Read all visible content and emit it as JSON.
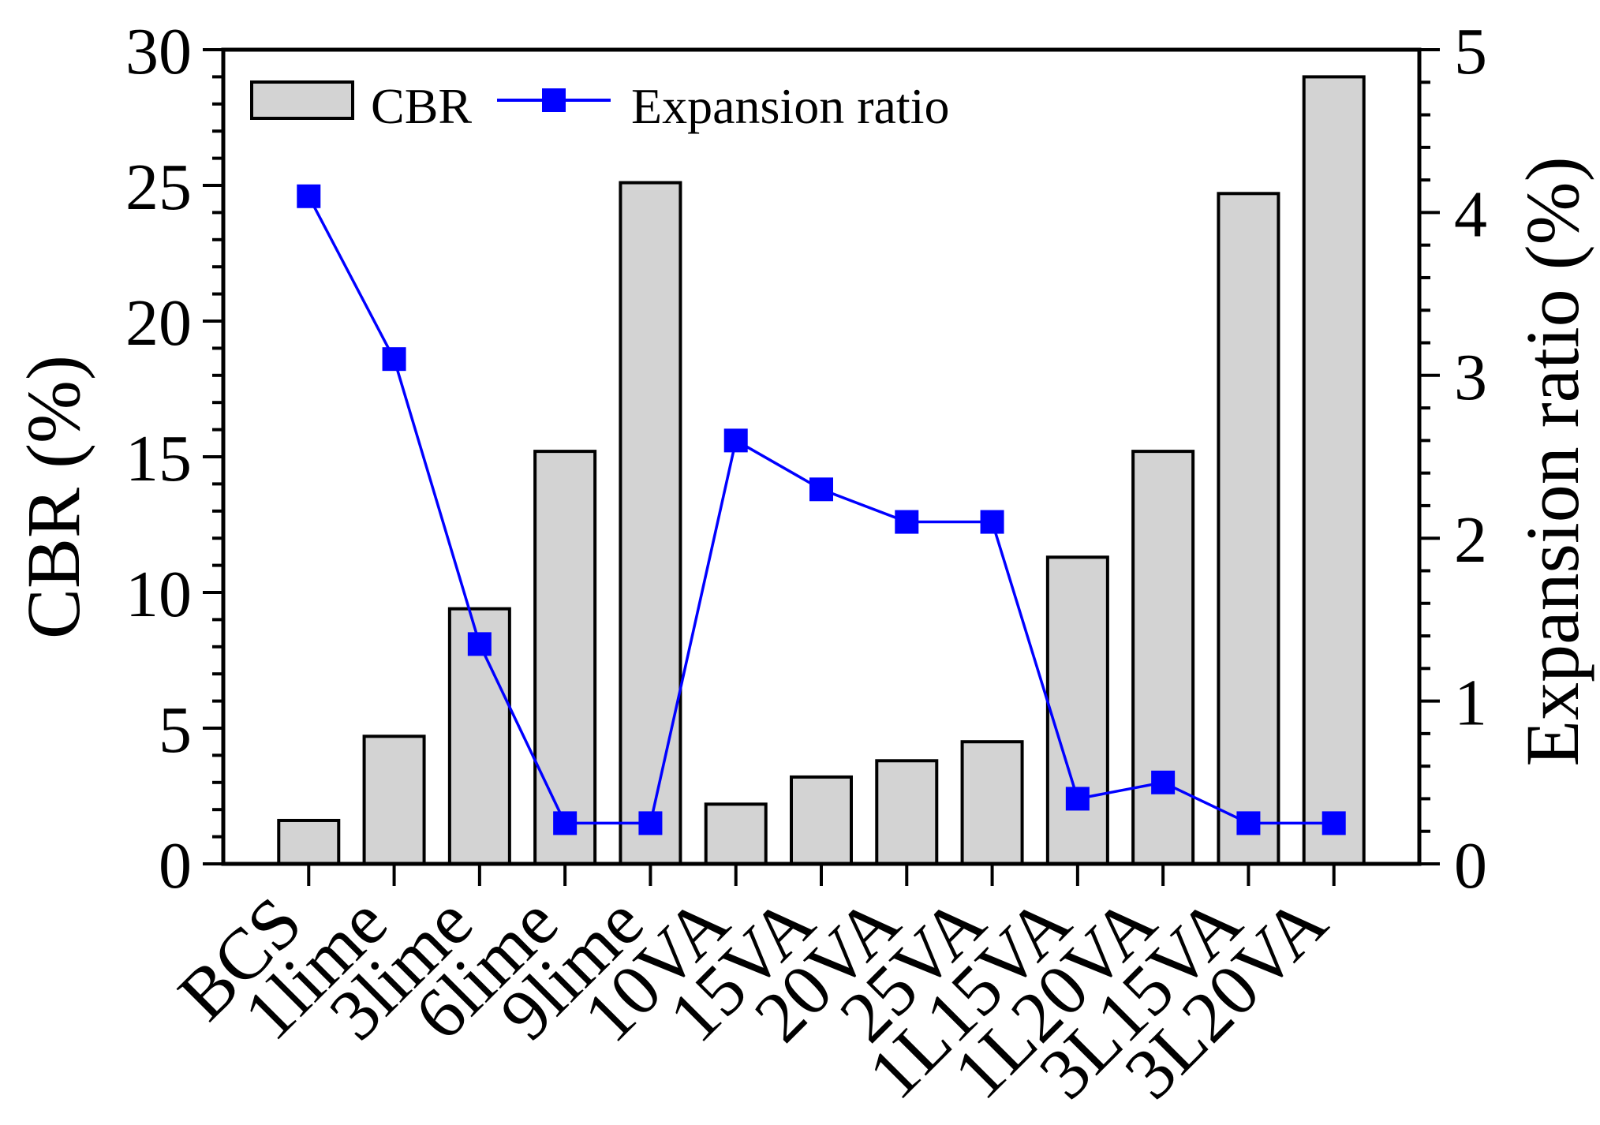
{
  "chart_data": {
    "type": "combo-bar-line",
    "title": "",
    "background": "#ffffff",
    "grid": "off",
    "categories": [
      "BCS",
      "1lime",
      "3lime",
      "6lime",
      "9lime",
      "10VA",
      "15VA",
      "20VA",
      "25VA",
      "1L15VA",
      "1L20VA",
      "3L15VA",
      "3L20VA"
    ],
    "series": [
      {
        "name": "CBR",
        "type": "bar",
        "axis": "left",
        "color": "#d3d3d3",
        "border_color": "#000000",
        "values": [
          1.6,
          4.7,
          9.4,
          15.2,
          25.1,
          2.2,
          3.2,
          3.8,
          4.5,
          11.3,
          15.2,
          24.7,
          29.0
        ]
      },
      {
        "name": "Expansion ratio",
        "type": "line",
        "axis": "right",
        "color": "#0000ff",
        "marker": "square",
        "values": [
          4.1,
          3.1,
          1.35,
          0.25,
          0.25,
          2.6,
          2.3,
          2.1,
          2.1,
          0.4,
          0.5,
          0.25,
          0.25
        ]
      }
    ],
    "left_axis": {
      "label": "CBR (%)",
      "min": 0,
      "max": 30,
      "major_step": 5,
      "minor_step": 1,
      "tick_labels": [
        "0",
        "5",
        "10",
        "15",
        "20",
        "25",
        "30"
      ]
    },
    "right_axis": {
      "label": "Expansion ratio (%)",
      "min": 0,
      "max": 5,
      "major_step": 1,
      "minor_step": 0.2,
      "tick_labels": [
        "0",
        "1",
        "2",
        "3",
        "4",
        "5"
      ]
    },
    "x_axis": {
      "label": "",
      "label_rotation_deg": 45,
      "tick_labels": [
        "BCS",
        "1lime",
        "3lime",
        "6lime",
        "9lime",
        "10VA",
        "15VA",
        "20VA",
        "25VA",
        "1L15VA",
        "1L20VA",
        "3L15VA",
        "3L20VA"
      ]
    },
    "legend": {
      "position": "top-left-inside",
      "items": [
        {
          "label": "CBR",
          "swatch": "gray-filled-rectangle"
        },
        {
          "label": "Expansion ratio",
          "swatch": "blue-line-with-square-marker"
        }
      ]
    }
  }
}
